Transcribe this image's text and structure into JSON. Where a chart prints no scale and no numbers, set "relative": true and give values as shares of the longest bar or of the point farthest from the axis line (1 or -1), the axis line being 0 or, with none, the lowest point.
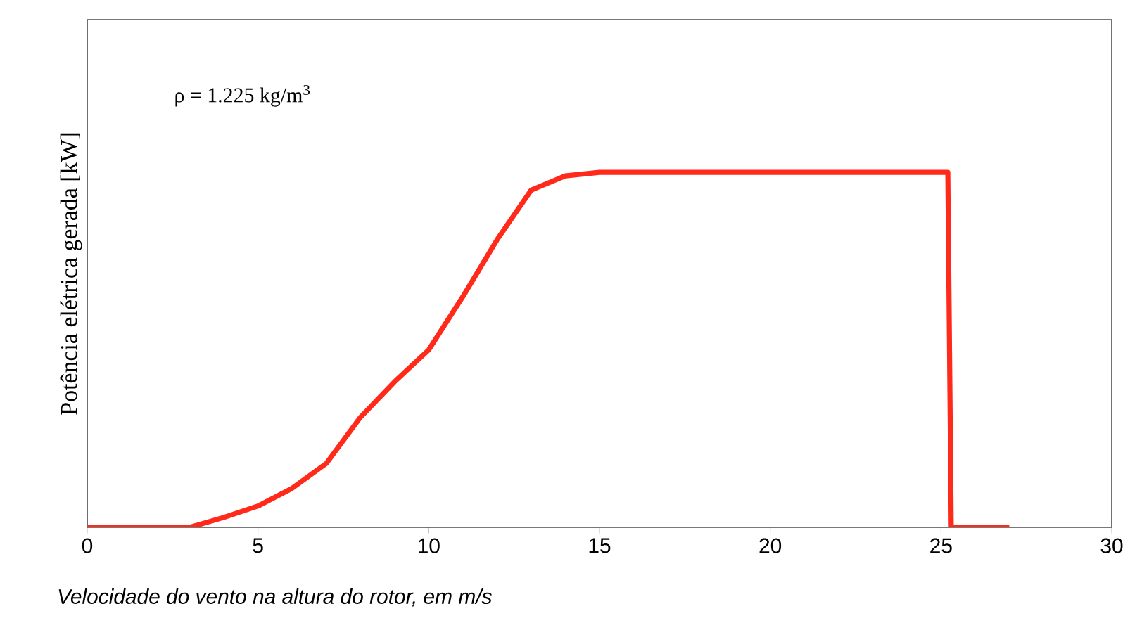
{
  "chart_data": {
    "type": "line",
    "relative": true,
    "xlabel": "Velocidade do vento na altura do rotor, em m/s",
    "ylabel": "Potência elétrica gerada  [kW]",
    "annotations": [
      "ρ = 1.225 kg/m$^{3}$"
    ],
    "xlim": [
      0,
      30
    ],
    "xticks": [
      0,
      5,
      10,
      15,
      20,
      25,
      30
    ],
    "x": [
      0,
      3,
      4,
      5,
      6,
      7,
      8,
      9,
      10,
      11,
      12,
      13,
      14,
      15,
      25.2,
      25.3,
      27
    ],
    "series": [
      {
        "color": "#ff2a1a",
        "values": [
          0,
          0,
          0.028,
          0.06,
          0.11,
          0.18,
          0.31,
          0.41,
          0.5,
          0.65,
          0.81,
          0.95,
          0.99,
          1,
          1,
          0,
          0
        ]
      }
    ],
    "marker": "none",
    "line_style": "solid"
  }
}
